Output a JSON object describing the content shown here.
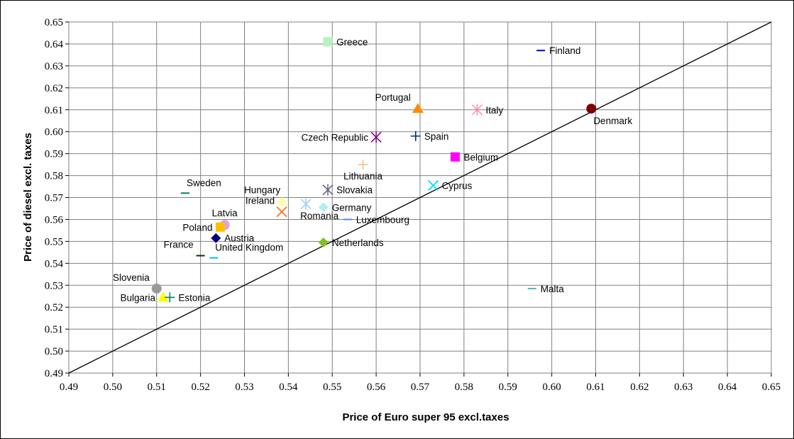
{
  "chart_data": {
    "type": "scatter",
    "xlabel": "Price of Euro super 95 excl.taxes",
    "ylabel": "Price of diesel excl. taxes",
    "xlim": [
      0.49,
      0.65
    ],
    "ylim": [
      0.49,
      0.65
    ],
    "xticks": [
      "0.49",
      "0.50",
      "0.51",
      "0.52",
      "0.53",
      "0.54",
      "0.55",
      "0.56",
      "0.57",
      "0.58",
      "0.59",
      "0.60",
      "0.61",
      "0.62",
      "0.63",
      "0.64",
      "0.65"
    ],
    "yticks": [
      "0.49",
      "0.50",
      "0.51",
      "0.52",
      "0.53",
      "0.54",
      "0.55",
      "0.56",
      "0.57",
      "0.58",
      "0.59",
      "0.60",
      "0.61",
      "0.62",
      "0.63",
      "0.64",
      "0.65"
    ],
    "grid": true,
    "legend": "none",
    "reference_line": {
      "from": [
        0.49,
        0.49
      ],
      "to": [
        0.65,
        0.65
      ]
    },
    "points": [
      {
        "label": "Greece",
        "x": 0.549,
        "y": 0.641,
        "marker": "square",
        "color": "#b8f0c0",
        "label_pos": "right"
      },
      {
        "label": "Finland",
        "x": 0.5975,
        "y": 0.637,
        "marker": "dash",
        "color": "#0000cc",
        "label_pos": "right"
      },
      {
        "label": "Portugal",
        "x": 0.5695,
        "y": 0.6105,
        "marker": "triangle",
        "color": "#ff8c00",
        "label_pos": "left-up"
      },
      {
        "label": "Italy",
        "x": 0.583,
        "y": 0.61,
        "marker": "asterisk",
        "color": "#ff88bb",
        "label_pos": "right"
      },
      {
        "label": "Denmark",
        "x": 0.609,
        "y": 0.6105,
        "marker": "circle",
        "color": "#7a0000",
        "label_pos": "below-right"
      },
      {
        "label": "Czech Republic",
        "x": 0.56,
        "y": 0.5975,
        "marker": "asterisk",
        "color": "#800080",
        "label_pos": "left"
      },
      {
        "label": "Spain",
        "x": 0.569,
        "y": 0.598,
        "marker": "plus",
        "color": "#003366",
        "label_pos": "right"
      },
      {
        "label": "Belgium",
        "x": 0.578,
        "y": 0.5885,
        "marker": "square",
        "color": "#ff00ff",
        "label_pos": "right"
      },
      {
        "label": "Lithuania",
        "x": 0.557,
        "y": 0.585,
        "marker": "plus",
        "color": "#f4c090",
        "label_pos": "below"
      },
      {
        "label": "Sweden",
        "x": 0.5165,
        "y": 0.572,
        "marker": "dash",
        "color": "#008060",
        "label_pos": "above-right"
      },
      {
        "label": "Cyprus",
        "x": 0.573,
        "y": 0.5755,
        "marker": "cross",
        "color": "#00e0ff",
        "label_pos": "right"
      },
      {
        "label": "Hungary",
        "x": 0.5385,
        "y": 0.568,
        "marker": "diamond",
        "color": "#ffffa0",
        "label_pos": "above-left"
      },
      {
        "label": "Slovakia",
        "x": 0.549,
        "y": 0.5735,
        "marker": "asterisk",
        "color": "#606090",
        "label_pos": "right"
      },
      {
        "label": "Ireland",
        "x": 0.5385,
        "y": 0.5635,
        "marker": "cross",
        "color": "#ff7020",
        "label_pos": "left-up"
      },
      {
        "label": "Romania",
        "x": 0.544,
        "y": 0.567,
        "marker": "asterisk",
        "color": "#99ccff",
        "label_pos": "below-left"
      },
      {
        "label": "Germany",
        "x": 0.548,
        "y": 0.5655,
        "marker": "diamond",
        "color": "#b0f0f0",
        "label_pos": "right"
      },
      {
        "label": "Luxembourg",
        "x": 0.5535,
        "y": 0.56,
        "marker": "dash",
        "color": "#4488ff",
        "label_pos": "right"
      },
      {
        "label": "Latvia",
        "x": 0.5255,
        "y": 0.5575,
        "marker": "circle",
        "color": "#e0a0e0",
        "label_pos": "above"
      },
      {
        "label": "Poland",
        "x": 0.5245,
        "y": 0.5565,
        "marker": "square",
        "color": "#ffc000",
        "label_pos": "left"
      },
      {
        "label": "Austria",
        "x": 0.5235,
        "y": 0.5515,
        "marker": "diamond",
        "color": "#000080",
        "label_pos": "right"
      },
      {
        "label": "Netherlands",
        "x": 0.548,
        "y": 0.5495,
        "marker": "diamond",
        "color": "#80c020",
        "label_pos": "right"
      },
      {
        "label": "France",
        "x": 0.52,
        "y": 0.5435,
        "marker": "dash",
        "color": "#003300",
        "label_pos": "left-up"
      },
      {
        "label": "United Kingdom",
        "x": 0.523,
        "y": 0.5425,
        "marker": "dash",
        "color": "#00c0ff",
        "label_pos": "above-right"
      },
      {
        "label": "Slovenia",
        "x": 0.51,
        "y": 0.5285,
        "marker": "circle",
        "color": "#999999",
        "label_pos": "left-up"
      },
      {
        "label": "Malta",
        "x": 0.5955,
        "y": 0.5285,
        "marker": "dash",
        "color": "#40c0c0",
        "label_pos": "right"
      },
      {
        "label": "Bulgaria",
        "x": 0.5115,
        "y": 0.5245,
        "marker": "triangle",
        "color": "#ffff00",
        "label_pos": "left"
      },
      {
        "label": "Estonia",
        "x": 0.513,
        "y": 0.5245,
        "marker": "plus",
        "color": "#008080",
        "label_pos": "right"
      }
    ]
  }
}
